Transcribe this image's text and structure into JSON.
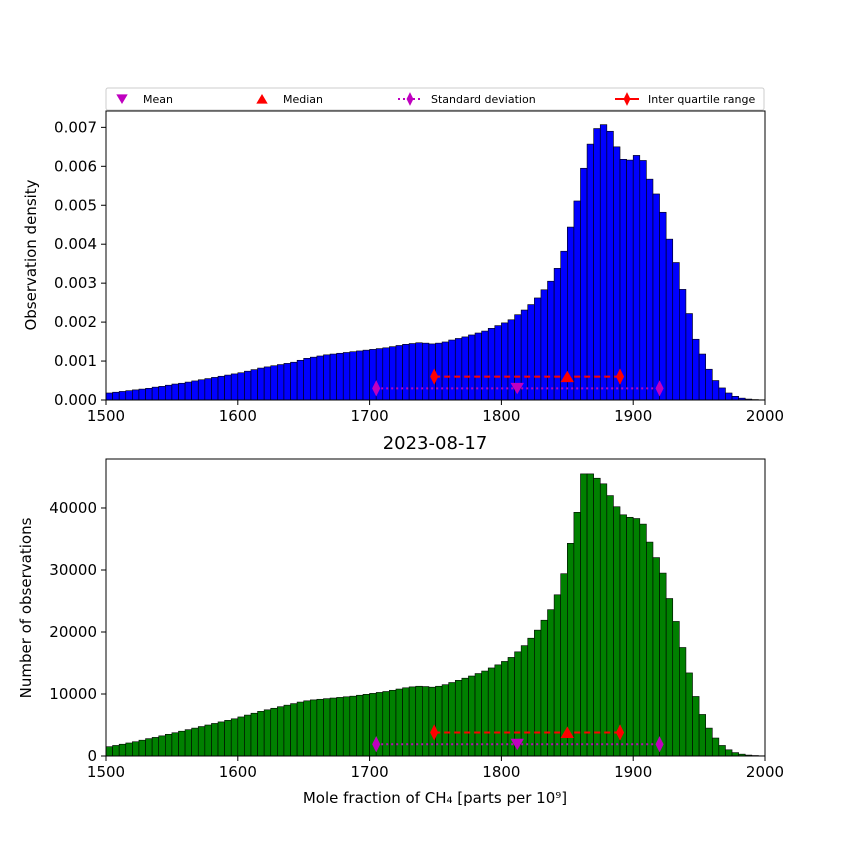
{
  "figure": {
    "legend": {
      "placement": "top, above upper panel",
      "entries": [
        {
          "label": "Mean",
          "marker": "triangle-down",
          "color": "#bf00bf"
        },
        {
          "label": "Median",
          "marker": "triangle-up",
          "color": "#ff0000"
        },
        {
          "label": "Standard deviation",
          "marker": "thin-diamond",
          "line": "dotted",
          "color": "#bf00bf"
        },
        {
          "label": "Inter quartile range",
          "marker": "thin-diamond",
          "line": "solid",
          "color": "#ff0000"
        }
      ]
    },
    "xlabel": "Mole fraction of CH₄ [parts per 10⁹]"
  },
  "chart_data": [
    {
      "type": "bar",
      "panel": "upper",
      "bar_color": "#0000ff",
      "edge_color": "#000000",
      "title": "",
      "xlabel": "",
      "ylabel": "Observation density",
      "xlim": [
        1500,
        2000
      ],
      "ylim": [
        0,
        0.00742
      ],
      "xticks": [
        "1500",
        "1600",
        "1700",
        "1800",
        "1900",
        "2000"
      ],
      "yticks": [
        "0.000",
        "0.001",
        "0.002",
        "0.003",
        "0.004",
        "0.005",
        "0.006",
        "0.007"
      ],
      "bin_width": 5,
      "bin_left_edges": [
        1500,
        1505,
        1510,
        1515,
        1520,
        1525,
        1530,
        1535,
        1540,
        1545,
        1550,
        1555,
        1560,
        1565,
        1570,
        1575,
        1580,
        1585,
        1590,
        1595,
        1600,
        1605,
        1610,
        1615,
        1620,
        1625,
        1630,
        1635,
        1640,
        1645,
        1650,
        1655,
        1660,
        1665,
        1670,
        1675,
        1680,
        1685,
        1690,
        1695,
        1700,
        1705,
        1710,
        1715,
        1720,
        1725,
        1730,
        1735,
        1740,
        1745,
        1750,
        1755,
        1760,
        1765,
        1770,
        1775,
        1780,
        1785,
        1790,
        1795,
        1800,
        1805,
        1810,
        1815,
        1820,
        1825,
        1830,
        1835,
        1840,
        1845,
        1850,
        1855,
        1860,
        1865,
        1870,
        1875,
        1880,
        1885,
        1890,
        1895,
        1900,
        1905,
        1910,
        1915,
        1920,
        1925,
        1930,
        1935,
        1940,
        1945,
        1950,
        1955,
        1960,
        1965,
        1970,
        1975,
        1980,
        1985,
        1990,
        1995
      ],
      "values": [
        0.00018,
        0.0002,
        0.00022,
        0.00024,
        0.00026,
        0.00028,
        0.0003,
        0.00033,
        0.00035,
        0.00038,
        0.00041,
        0.00043,
        0.00046,
        0.00049,
        0.00052,
        0.00055,
        0.00058,
        0.00061,
        0.00064,
        0.00067,
        0.0007,
        0.00074,
        0.00078,
        0.00082,
        0.00085,
        0.00088,
        0.00091,
        0.00094,
        0.00097,
        0.00102,
        0.00107,
        0.0011,
        0.00113,
        0.00116,
        0.00118,
        0.0012,
        0.00122,
        0.00124,
        0.00126,
        0.00128,
        0.0013,
        0.00132,
        0.00134,
        0.00137,
        0.0014,
        0.00143,
        0.00145,
        0.00147,
        0.00146,
        0.00144,
        0.00146,
        0.00149,
        0.00154,
        0.00158,
        0.00162,
        0.00167,
        0.00172,
        0.00177,
        0.00184,
        0.00191,
        0.00198,
        0.00206,
        0.00219,
        0.00231,
        0.00245,
        0.00262,
        0.00283,
        0.00305,
        0.00338,
        0.00382,
        0.00444,
        0.00511,
        0.00595,
        0.00657,
        0.00697,
        0.00707,
        0.0069,
        0.0065,
        0.00618,
        0.00616,
        0.00628,
        0.00615,
        0.00567,
        0.00529,
        0.00482,
        0.00413,
        0.00353,
        0.00284,
        0.00222,
        0.00156,
        0.00118,
        0.00079,
        0.0005,
        0.00031,
        0.00018,
        9.5e-05,
        4.8e-05,
        2.4e-05,
        1.2e-05,
        6e-06
      ],
      "statistics": {
        "mean": 1812,
        "median": 1850,
        "std_range": [
          1705,
          1920
        ],
        "iqr_range": [
          1749,
          1890
        ],
        "std_marker_y": 0.0003,
        "iqr_marker_y": 0.0006
      }
    },
    {
      "type": "bar",
      "panel": "lower",
      "bar_color": "#008000",
      "edge_color": "#000000",
      "title": "2023-08-17",
      "xlabel": "Mole fraction of CH₄ [parts per 10⁹]",
      "ylabel": "Number of observations",
      "xlim": [
        1500,
        2000
      ],
      "ylim": [
        0,
        47900
      ],
      "xticks": [
        "1500",
        "1600",
        "1700",
        "1800",
        "1900",
        "2000"
      ],
      "yticks": [
        "0",
        "10000",
        "20000",
        "30000",
        "40000"
      ],
      "bin_width": 5,
      "values": [
        1500,
        1700,
        1900,
        2100,
        2300,
        2550,
        2800,
        3000,
        3250,
        3500,
        3750,
        4000,
        4250,
        4500,
        4750,
        5000,
        5250,
        5500,
        5750,
        6000,
        6300,
        6600,
        6900,
        7200,
        7450,
        7700,
        7950,
        8200,
        8450,
        8700,
        8900,
        9050,
        9150,
        9250,
        9350,
        9450,
        9550,
        9650,
        9800,
        9950,
        10100,
        10250,
        10400,
        10600,
        10800,
        11000,
        11150,
        11250,
        11200,
        11100,
        11250,
        11500,
        11850,
        12200,
        12550,
        12900,
        13300,
        13700,
        14200,
        14700,
        15250,
        15900,
        16800,
        17800,
        19000,
        20300,
        21900,
        23600,
        26000,
        29400,
        34300,
        39300,
        45500,
        45500,
        44800,
        43900,
        42000,
        40200,
        38900,
        38500,
        38300,
        37400,
        34500,
        32000,
        29500,
        25400,
        21700,
        17500,
        13400,
        9600,
        6700,
        4500,
        2900,
        1700,
        1000,
        550,
        300,
        150,
        80,
        40
      ],
      "statistics": {
        "mean": 1812,
        "median": 1850,
        "std_range": [
          1705,
          1920
        ],
        "iqr_range": [
          1749,
          1890
        ],
        "std_marker_y": 1900,
        "iqr_marker_y": 3800
      }
    }
  ]
}
